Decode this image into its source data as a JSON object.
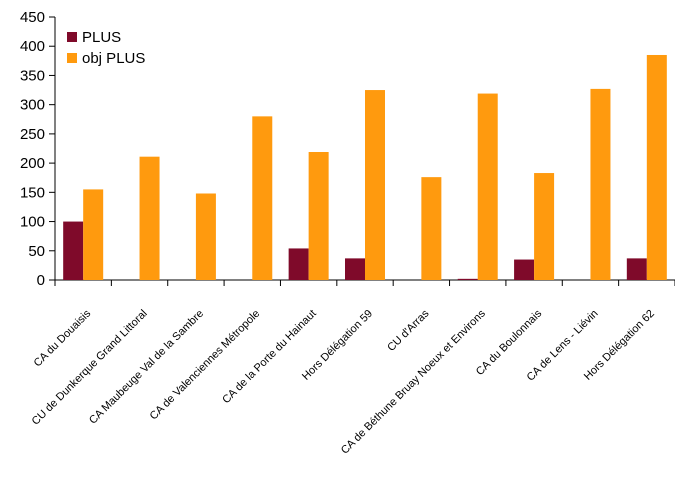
{
  "chart_data": {
    "type": "bar",
    "title": "",
    "xlabel": "",
    "ylabel": "",
    "ylim": [
      0,
      450
    ],
    "yticks": [
      0,
      50,
      100,
      150,
      200,
      250,
      300,
      350,
      400,
      450
    ],
    "grid": false,
    "legend_position": "top-left",
    "categories": [
      "CA du Douaisis",
      "CU de Dunkerque Grand Littoral",
      "CA Maubeuge Val de la Sambre",
      "CA de Valenciennes Métropole",
      "CA de la Porte du Hainaut",
      "Hors Délégation 59",
      "CU d'Arras",
      "CA de Béthune Bruay Noeux et Environs",
      "CA du Boulonnais",
      "CA de Lens - Liévin",
      "Hors Délégation 62"
    ],
    "series": [
      {
        "name": "PLUS",
        "color": "#7f0a2a",
        "values": [
          100,
          0,
          0,
          0,
          54,
          37,
          0,
          2,
          35,
          0,
          37
        ]
      },
      {
        "name": "obj PLUS",
        "color": "#ff9a0e",
        "values": [
          155,
          211,
          148,
          280,
          219,
          325,
          176,
          319,
          183,
          327,
          385
        ]
      }
    ]
  }
}
